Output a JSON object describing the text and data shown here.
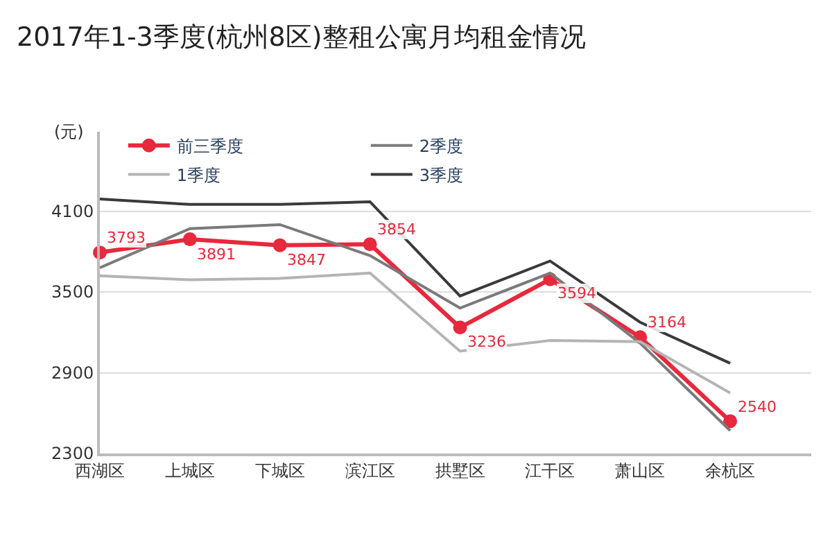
{
  "chart_data": {
    "type": "line",
    "title": "2017年1-3季度(杭州8区)整租公寓月均租金情况",
    "ylabel": "(元)",
    "categories": [
      "西湖区",
      "上城区",
      "下城区",
      "滨江区",
      "拱墅区",
      "江干区",
      "萧山区",
      "余杭区"
    ],
    "series": [
      {
        "name": "前三季度",
        "color": "#e8283c",
        "values": [
          3793,
          3891,
          3847,
          3854,
          3236,
          3594,
          3164,
          2540
        ],
        "marker": "circle",
        "data_labels": true
      },
      {
        "name": "2季度",
        "color": "#7a7a7a",
        "values": [
          3680,
          3970,
          4000,
          3770,
          3380,
          3640,
          3120,
          2470
        ],
        "marker": "none"
      },
      {
        "name": "1季度",
        "color": "#b4b4b4",
        "values": [
          3620,
          3590,
          3600,
          3640,
          3060,
          3140,
          3130,
          2750
        ],
        "marker": "none"
      },
      {
        "name": "3季度",
        "color": "#3a3a3a",
        "values": [
          4190,
          4150,
          4150,
          4170,
          3470,
          3730,
          3275,
          2970
        ],
        "marker": "none"
      }
    ],
    "ylim": [
      2300,
      4690
    ],
    "yticks": [
      2300,
      2900,
      3500,
      4100
    ],
    "grid": "y",
    "legend": "top left"
  }
}
